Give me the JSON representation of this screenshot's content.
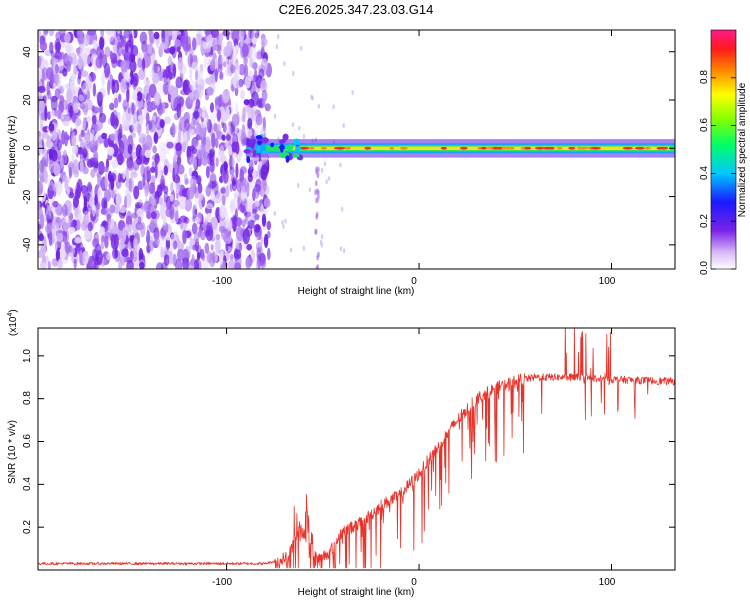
{
  "title": "C2E6.2025.347.23.03.G14",
  "chart_data": [
    {
      "type": "heatmap",
      "xlabel": "Height of straight line (km)",
      "ylabel": "Frequency (Hz)",
      "xlim": [
        -198,
        133
      ],
      "ylim": [
        -50,
        49
      ],
      "xticks": [
        -100,
        0,
        100
      ],
      "yticks": [
        -40,
        -20,
        0,
        20,
        40
      ],
      "xtick_labels": [
        "-100",
        "0",
        "100"
      ],
      "ytick_labels": [
        "-40",
        "-20",
        "0",
        "20",
        "40"
      ],
      "noise_region_x": [
        -198,
        -78
      ],
      "signal_band": {
        "x_start": -90,
        "x_end": 133,
        "center_hz": 0,
        "half_width_hz": 3
      },
      "colorbar": {
        "label": "Normalized spectral amplitude",
        "range": [
          0,
          1
        ],
        "ticks": [
          0.0,
          0.2,
          0.4,
          0.6,
          0.8
        ],
        "tick_labels": [
          "0.0",
          "0.2",
          "0.4",
          "0.6",
          "0.8"
        ]
      }
    },
    {
      "type": "line",
      "xlabel": "Height of straight line (km)",
      "ylabel": "SNR (10 * v/v)",
      "yscale_label": "(x10",
      "yscale_exp": "4",
      "yscale_close": ")",
      "xlim": [
        -198,
        133
      ],
      "ylim": [
        0,
        1.13
      ],
      "xticks": [
        -100,
        0,
        100
      ],
      "yticks": [
        0.2,
        0.4,
        0.6,
        0.8,
        1.0
      ],
      "xtick_labels": [
        "-100",
        "0",
        "100"
      ],
      "ytick_labels": [
        "0.2",
        "0.4",
        "0.6",
        "0.8",
        "1.0"
      ],
      "color": "#e8322a",
      "trend": {
        "x": [
          -198,
          -80,
          -75,
          -68,
          -62,
          -58,
          -52,
          -46,
          -40,
          -30,
          -20,
          -10,
          0,
          10,
          20,
          30,
          40,
          50,
          60,
          80,
          100,
          133
        ],
        "y": [
          0.03,
          0.03,
          0.04,
          0.06,
          0.2,
          0.13,
          0.05,
          0.09,
          0.18,
          0.22,
          0.3,
          0.35,
          0.45,
          0.58,
          0.7,
          0.8,
          0.85,
          0.88,
          0.9,
          0.9,
          0.89,
          0.88
        ]
      }
    }
  ]
}
